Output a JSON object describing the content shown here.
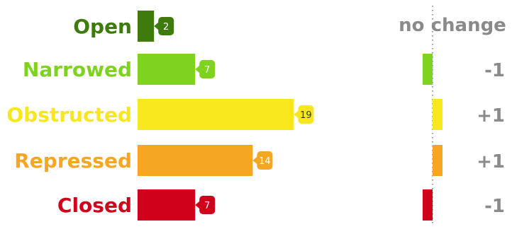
{
  "chart_data": {
    "type": "bar",
    "orientation": "horizontal",
    "categories": [
      "Open",
      "Narrowed",
      "Obstructed",
      "Repressed",
      "Closed"
    ],
    "values": [
      2,
      7,
      19,
      14,
      7
    ],
    "colors": [
      "#3f7a0d",
      "#7ed321",
      "#f8e71c",
      "#f5a623",
      "#d0021b"
    ],
    "change": {
      "title": "no change",
      "values": [
        0,
        -1,
        1,
        1,
        -1
      ],
      "labels": [
        "",
        "-1",
        "+1",
        "+1",
        "-1"
      ]
    }
  }
}
